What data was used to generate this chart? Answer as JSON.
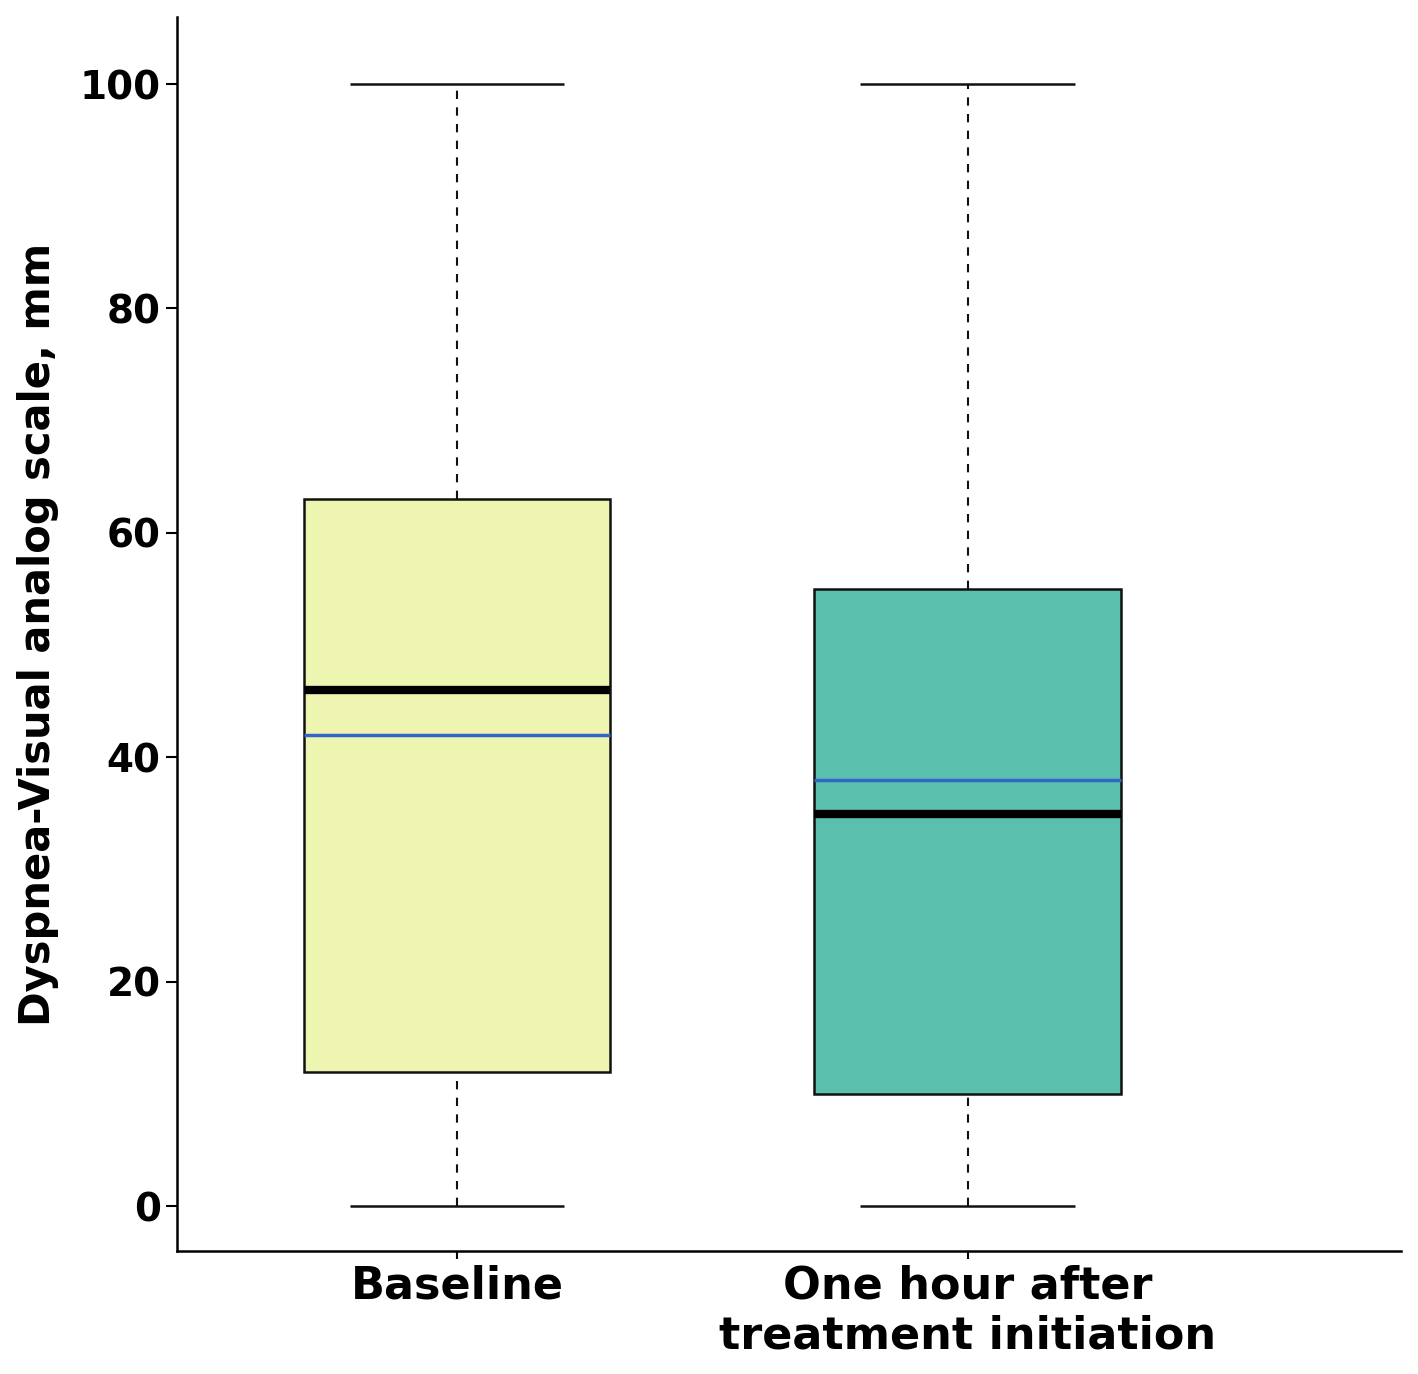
{
  "boxes": [
    {
      "label": "Baseline",
      "q1": 12,
      "median": 46,
      "q3": 63,
      "mean": 42,
      "whisker_low": 0,
      "whisker_high": 100,
      "color": "#eef5b0",
      "edge_color": "#111111"
    },
    {
      "label": "One hour after\ntreatment initiation",
      "q1": 10,
      "median": 35,
      "q3": 55,
      "mean": 38,
      "whisker_low": 0,
      "whisker_high": 100,
      "color": "#5bbfad",
      "edge_color": "#111111"
    }
  ],
  "ylabel": "Dyspnea-Visual analog scale, mm",
  "ylim": [
    -4,
    106
  ],
  "yticks": [
    0,
    20,
    40,
    60,
    80,
    100
  ],
  "median_color": "black",
  "median_linewidth": 6,
  "mean_color": "#3366cc",
  "mean_linewidth": 2.5,
  "box_width": 0.6,
  "background_color": "white",
  "tick_fontsize": 28,
  "ylabel_fontsize": 30,
  "xlabel_fontsize": 32,
  "positions": [
    1,
    2
  ],
  "xlim": [
    0.45,
    2.85
  ]
}
